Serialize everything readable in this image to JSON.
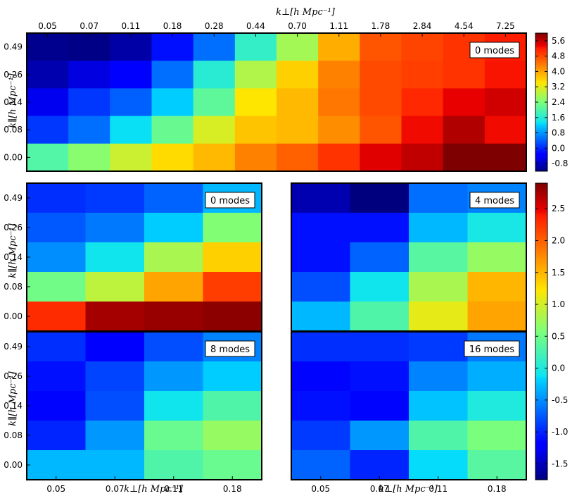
{
  "chart_data": {
    "type": "heatmap",
    "kperp_label": "k⊥[h Mpc⁻¹]",
    "kpar_label": "k∥[h Mpc⁻¹]",
    "top": {
      "mode_label": "0 modes",
      "x_ticks": [
        "0.05",
        "0.07",
        "0.11",
        "0.18",
        "0.28",
        "0.44",
        "0.70",
        "1.11",
        "1.78",
        "2.84",
        "4.54",
        "7.25"
      ],
      "y_ticks": [
        "0.49",
        "0.26",
        "0.14",
        "0.08",
        "0.00"
      ],
      "values": [
        [
          -1.1,
          -1.15,
          -0.95,
          -0.2,
          0.5,
          1.7,
          2.7,
          3.9,
          4.7,
          4.85,
          5.0,
          5.2
        ],
        [
          -0.9,
          -0.6,
          -0.4,
          0.5,
          1.6,
          2.8,
          3.6,
          4.3,
          4.8,
          4.9,
          5.0,
          5.25
        ],
        [
          -0.5,
          0.1,
          0.4,
          1.2,
          2.1,
          3.4,
          3.8,
          4.4,
          4.8,
          5.1,
          5.35,
          5.5
        ],
        [
          0.1,
          0.5,
          1.3,
          2.2,
          3.1,
          3.7,
          3.8,
          4.2,
          4.7,
          5.3,
          5.7,
          5.3
        ],
        [
          2.0,
          2.5,
          3.0,
          3.5,
          3.8,
          4.3,
          4.6,
          5.0,
          5.4,
          5.6,
          6.0,
          6.0
        ]
      ],
      "colorbar_min": -1.2,
      "colorbar_max": 6.0,
      "colorbar_ticks": [
        "5.6",
        "4.8",
        "4.0",
        "3.2",
        "2.4",
        "1.6",
        "0.8",
        "0.0",
        "-0.8"
      ]
    },
    "panels": [
      {
        "mode_label": "0 modes",
        "values": [
          [
            -0.95,
            -0.9,
            -0.7,
            -0.3
          ],
          [
            -0.75,
            -0.6,
            -0.2,
            0.6
          ],
          [
            -0.5,
            -0.1,
            0.8,
            1.35
          ],
          [
            0.5,
            0.9,
            1.6,
            2.2
          ],
          [
            2.3,
            2.75,
            2.8,
            2.85
          ]
        ]
      },
      {
        "mode_label": "4 modes",
        "values": [
          [
            -1.55,
            -1.75,
            -0.65,
            -0.55
          ],
          [
            -1.1,
            -1.1,
            -0.3,
            -0.05
          ],
          [
            -1.1,
            -0.7,
            0.35,
            0.7
          ],
          [
            -0.8,
            -0.1,
            0.8,
            1.5
          ],
          [
            -0.3,
            0.3,
            1.1,
            1.6
          ]
        ]
      },
      {
        "mode_label": "8 modes",
        "values": [
          [
            -0.95,
            -1.2,
            -0.8,
            -0.55
          ],
          [
            -1.1,
            -0.85,
            -0.45,
            -0.2
          ],
          [
            -1.15,
            -0.8,
            -0.1,
            0.3
          ],
          [
            -1.0,
            -0.45,
            0.45,
            0.7
          ],
          [
            -0.3,
            -0.3,
            0.3,
            0.45
          ]
        ]
      },
      {
        "mode_label": "16 modes",
        "values": [
          [
            -0.95,
            -0.95,
            -0.9,
            -0.6
          ],
          [
            -1.15,
            -1.1,
            -0.55,
            -0.35
          ],
          [
            -1.1,
            -1.15,
            -0.25,
            0.0
          ],
          [
            -0.9,
            -0.45,
            0.3,
            0.55
          ],
          [
            -0.7,
            -1.0,
            -0.15,
            0.35
          ]
        ]
      }
    ],
    "bottom_x_ticks": [
      "0.05",
      "0.07",
      "0.11",
      "0.18"
    ],
    "bottom_y_ticks": [
      "0.49",
      "0.26",
      "0.14",
      "0.08",
      "0.00"
    ],
    "bottom_colorbar_min": -1.75,
    "bottom_colorbar_max": 2.9,
    "bottom_colorbar_ticks": [
      "2.5",
      "2.0",
      "1.5",
      "1.0",
      "0.5",
      "0.0",
      "-0.5",
      "-1.0",
      "-1.5"
    ]
  }
}
